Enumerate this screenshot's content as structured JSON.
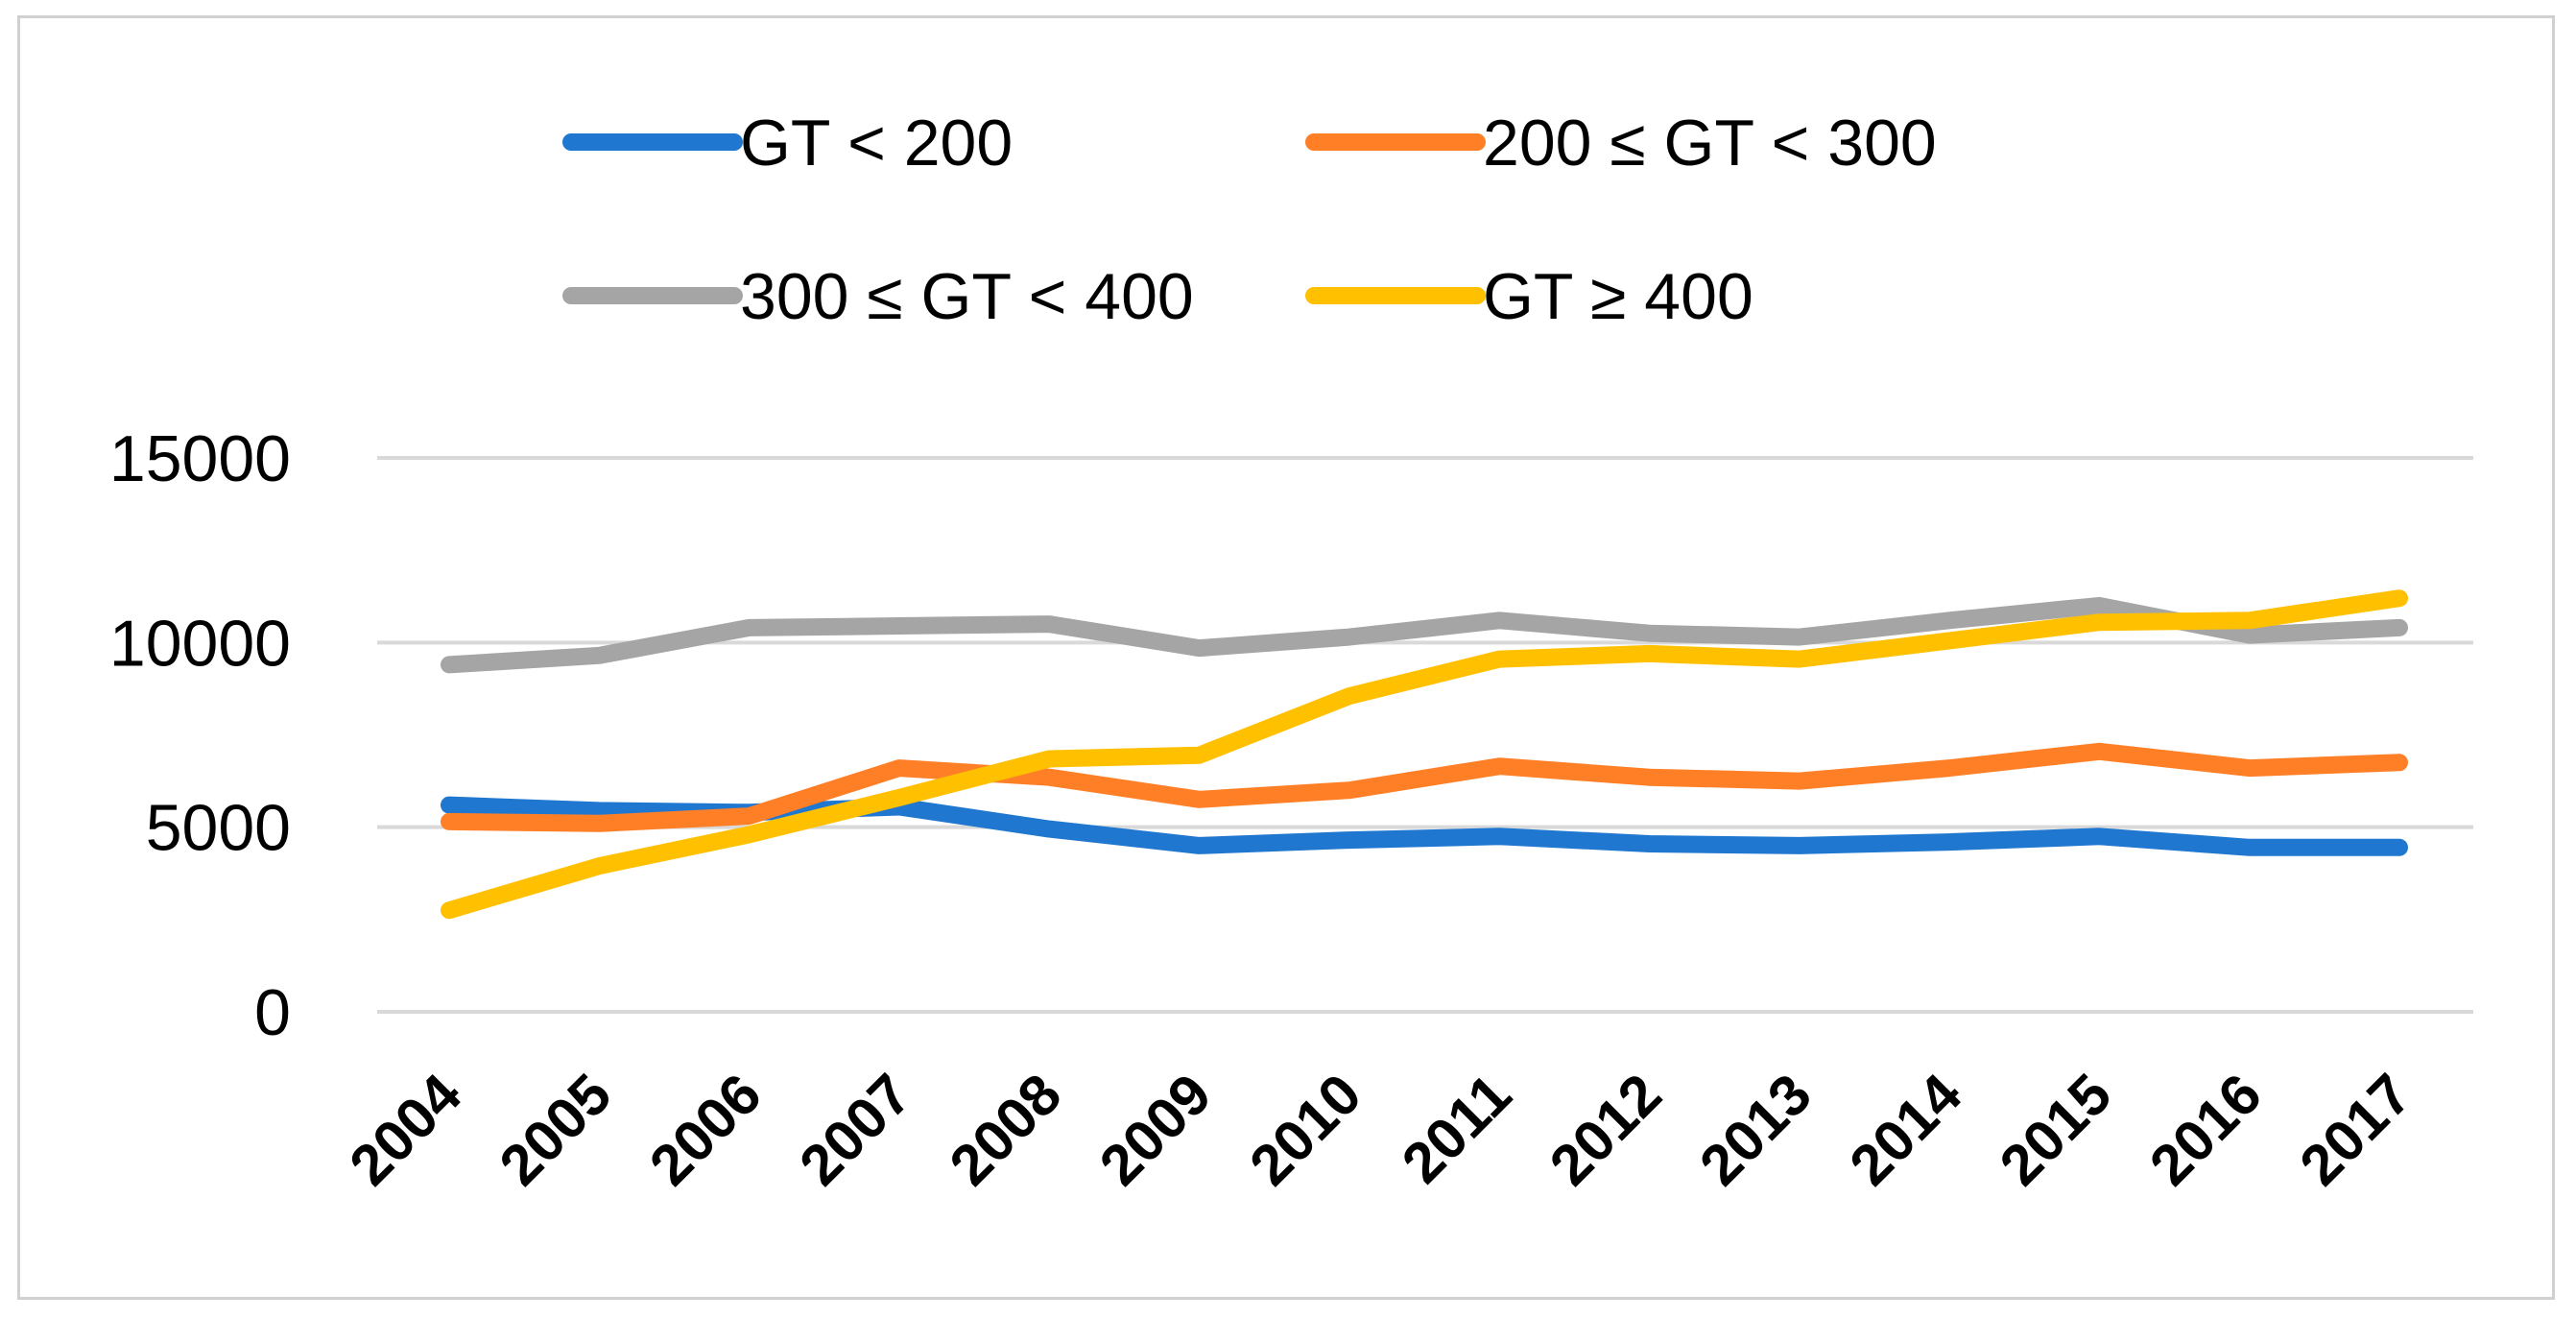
{
  "chart_data": {
    "type": "line",
    "title": "",
    "xlabel": "",
    "ylabel": "",
    "categories": [
      "2004",
      "2005",
      "2006",
      "2007",
      "2008",
      "2009",
      "2010",
      "2011",
      "2012",
      "2013",
      "2014",
      "2015",
      "2016",
      "2017"
    ],
    "ylim": [
      0,
      15000
    ],
    "yticks": [
      "0",
      "5000",
      "10000",
      "15000"
    ],
    "grid": true,
    "legend_position": "top",
    "series": [
      {
        "name": "GT < 200",
        "color": "#1f77d0",
        "values": [
          5600,
          5450,
          5400,
          5550,
          4950,
          4500,
          4650,
          4750,
          4550,
          4500,
          4600,
          4750,
          4450,
          4450
        ]
      },
      {
        "name": "200 ≤  GT < 300",
        "color": "#ff7f27",
        "values": [
          5150,
          5100,
          5300,
          6600,
          6350,
          5750,
          6000,
          6650,
          6350,
          6250,
          6600,
          7050,
          6600,
          6750
        ]
      },
      {
        "name": "300 ≤ GT < 400",
        "color": "#a5a5a5",
        "values": [
          9400,
          9650,
          10400,
          10450,
          10500,
          9850,
          10150,
          10600,
          10250,
          10150,
          10600,
          11000,
          10200,
          10400
        ]
      },
      {
        "name": "GT ≥  400",
        "color": "#ffc000",
        "values": [
          2750,
          3950,
          4800,
          5800,
          6850,
          6950,
          8550,
          9550,
          9700,
          9550,
          10050,
          10550,
          10600,
          11200
        ]
      }
    ]
  }
}
